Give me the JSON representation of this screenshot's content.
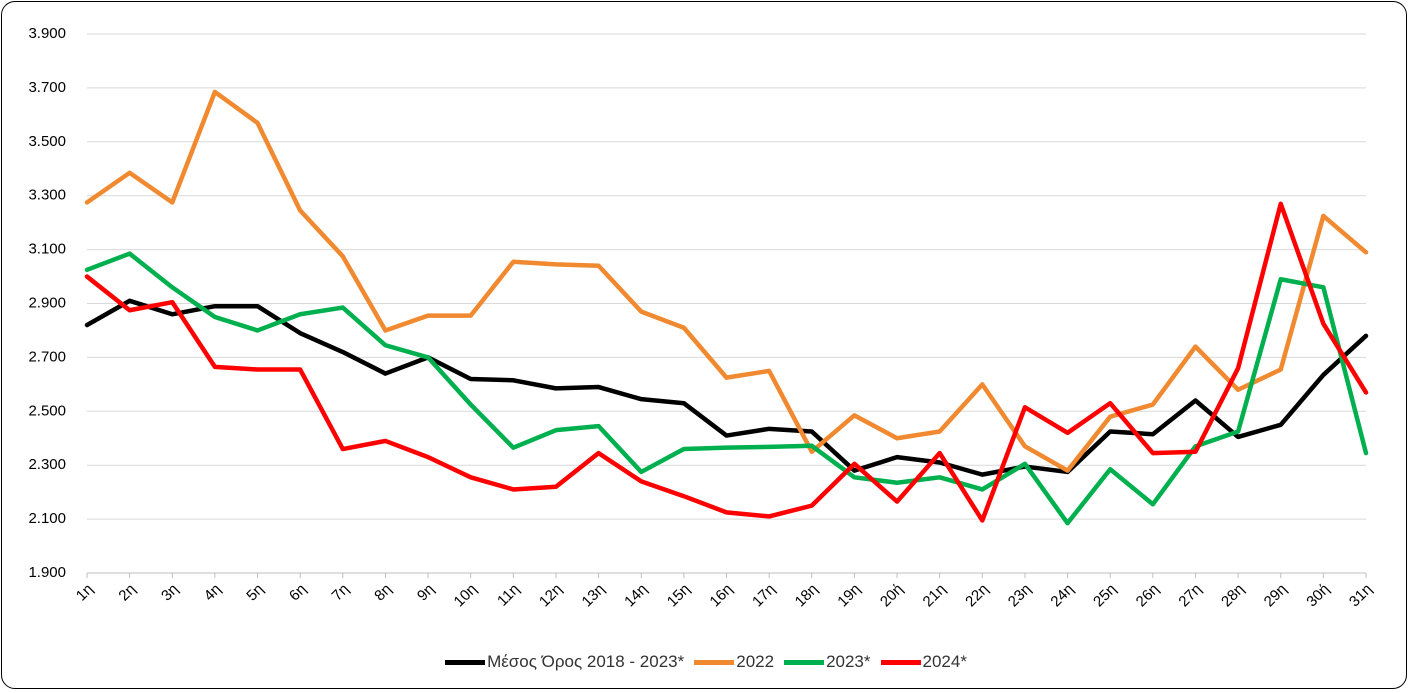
{
  "chart_data": {
    "type": "line",
    "categories": [
      "1η",
      "2η",
      "3η",
      "4η",
      "5η",
      "6η",
      "7η",
      "8η",
      "9η",
      "10η",
      "11η",
      "12η",
      "13η",
      "14η",
      "15η",
      "16η",
      "17η",
      "18η",
      "19η",
      "20ή",
      "21η",
      "22η",
      "23η",
      "24η",
      "25η",
      "26η",
      "27η",
      "28η",
      "29η",
      "30ή",
      "31η"
    ],
    "series": [
      {
        "name": "Μέσος Όρος 2018 - 2023*",
        "color": "#000000",
        "values": [
          2820,
          2910,
          2860,
          2890,
          2890,
          2790,
          2720,
          2640,
          2700,
          2620,
          2615,
          2585,
          2590,
          2545,
          2530,
          2410,
          2435,
          2425,
          2280,
          2330,
          2310,
          2265,
          2295,
          2275,
          2425,
          2415,
          2540,
          2405,
          2450,
          2635,
          2780
        ]
      },
      {
        "name": "2022",
        "color": "#F0892F",
        "values": [
          3275,
          3385,
          3275,
          3685,
          3570,
          3245,
          3075,
          2800,
          2855,
          2855,
          3055,
          3045,
          3040,
          2870,
          2810,
          2625,
          2650,
          2350,
          2485,
          2400,
          2425,
          2600,
          2370,
          2280,
          2480,
          2525,
          2740,
          2580,
          2655,
          3225,
          3090
        ]
      },
      {
        "name": "2023*",
        "color": "#00B04F",
        "values": [
          3025,
          3085,
          2960,
          2850,
          2800,
          2860,
          2885,
          2745,
          2700,
          2525,
          2365,
          2430,
          2445,
          2275,
          2360,
          2365,
          2368,
          2372,
          2255,
          2235,
          2255,
          2210,
          2305,
          2085,
          2285,
          2155,
          2370,
          2425,
          2990,
          2960,
          2345
        ]
      },
      {
        "name": "2024*",
        "color": "#FF0000",
        "values": [
          3000,
          2875,
          2905,
          2665,
          2655,
          2655,
          2360,
          2390,
          2330,
          2255,
          2210,
          2220,
          2345,
          2240,
          2185,
          2125,
          2110,
          2150,
          2305,
          2165,
          2345,
          2095,
          2515,
          2420,
          2530,
          2345,
          2350,
          2660,
          3270,
          2825,
          2570
        ]
      }
    ],
    "ylim": [
      1900,
      3900
    ],
    "yticks": [
      {
        "value": 1900,
        "label": "1.900"
      },
      {
        "value": 2100,
        "label": "2.100"
      },
      {
        "value": 2300,
        "label": "2.300"
      },
      {
        "value": 2500,
        "label": "2.500"
      },
      {
        "value": 2700,
        "label": "2.700"
      },
      {
        "value": 2900,
        "label": "2.900"
      },
      {
        "value": 3100,
        "label": "3.100"
      },
      {
        "value": 3300,
        "label": "3.300"
      },
      {
        "value": 3500,
        "label": "3.500"
      },
      {
        "value": 3700,
        "label": "3.700"
      },
      {
        "value": 3900,
        "label": "3.900"
      }
    ],
    "grid": true,
    "legend": "bottom"
  }
}
